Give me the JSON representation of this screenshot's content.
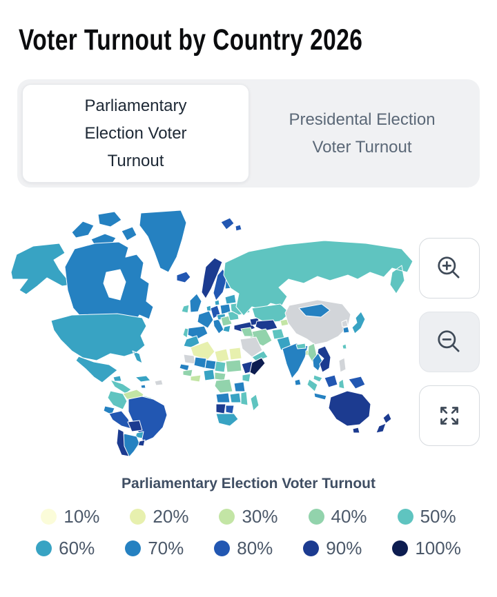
{
  "title": "Voter Turnout by Country 2026",
  "tabs": [
    {
      "label": "Parliamentary Election Voter Turnout",
      "active": true
    },
    {
      "label": "Presidental Election Voter Turnout",
      "active": false
    }
  ],
  "controls": [
    {
      "icon": "zoom-in-icon"
    },
    {
      "icon": "zoom-out-icon"
    },
    {
      "icon": "fullscreen-icon"
    }
  ],
  "legend": {
    "title": "Parliamentary Election Voter Turnout",
    "items": [
      {
        "label": "10%",
        "color": "#fbfcd9"
      },
      {
        "label": "20%",
        "color": "#e7f0ae"
      },
      {
        "label": "30%",
        "color": "#c3e5a5"
      },
      {
        "label": "40%",
        "color": "#92d3ac"
      },
      {
        "label": "50%",
        "color": "#5fc4c0"
      },
      {
        "label": "60%",
        "color": "#38a3c3"
      },
      {
        "label": "70%",
        "color": "#2581c1"
      },
      {
        "label": "80%",
        "color": "#2257b2"
      },
      {
        "label": "90%",
        "color": "#1c3b90"
      },
      {
        "label": "100%",
        "color": "#0d1d50"
      }
    ]
  },
  "map": {
    "palette": {
      "10": "#fbfcd9",
      "20": "#e7f0ae",
      "30": "#c3e5a5",
      "40": "#92d3ac",
      "50": "#5fc4c0",
      "60": "#38a3c3",
      "70": "#2581c1",
      "80": "#2257b2",
      "90": "#1c3b90",
      "100": "#0d1d50",
      "no-data": "#d2d5d9",
      "ocean": "#ffffff"
    },
    "regions": {
      "alaska": "60",
      "canada": "70",
      "arctic-islands": "70",
      "hudson-bay": "ocean",
      "greenland": "70",
      "iceland": "80",
      "usa": "60",
      "mexico": "60",
      "central-america": "50",
      "cuba": "60",
      "hispaniola": "no-data",
      "jamaica": "70",
      "venezuela": "30",
      "colombia": "50",
      "guyanas": "50",
      "ecuador": "70",
      "peru": "80",
      "brazil": "80",
      "bolivia": "90",
      "paraguay": "60",
      "chile": "90",
      "argentina": "70",
      "uruguay": "90",
      "norway": "90",
      "sweden": "80",
      "finland": "70",
      "uk": "70",
      "ireland": "50",
      "portugal": "50",
      "spain": "70",
      "france": "70",
      "germany": "80",
      "benelux": "60",
      "denmark": "60",
      "poland": "70",
      "czechia-region": "60",
      "italy": "70",
      "balkans": "40",
      "greece": "60",
      "romania-bulgaria": "50",
      "ukraine": "50",
      "belarus-baltics": "60",
      "turkey": "90",
      "caucasus": "90",
      "russia": "50",
      "svalbard": "80",
      "kazakhstan": "50",
      "central-asia": "90",
      "kyrgyzstan": "30",
      "iran": "40",
      "iraq-syria": "40",
      "saudi-arabia": "no-data",
      "yemen-oman": "50",
      "afghanistan": "50",
      "pakistan": "60",
      "india": "70",
      "sri-lanka": "70",
      "nepal": "50",
      "bangladesh": "30",
      "china": "no-data",
      "mongolia": "70",
      "north-korea": "no-data",
      "south-korea": "70",
      "japan": "60",
      "taiwan": "50",
      "myanmar": "40",
      "thailand": "70",
      "indochina": "90",
      "malaysia": "50",
      "sumatra": "50",
      "java": "70",
      "borneo": "80",
      "sulawesi": "50",
      "philippines": "no-data",
      "new-guinea": "80",
      "australia": "90",
      "tasmania": "90",
      "new-zealand": "90",
      "morocco": "60",
      "algeria": "20",
      "libya": "20",
      "egypt": "20",
      "mauritania": "no-data",
      "mali": "70",
      "niger": "70",
      "chad": "50",
      "sudan": "40",
      "senegal": "70",
      "guinea-region": "40",
      "ivory-ghana": "30",
      "nigeria": "60",
      "cameroon-car": "40",
      "ethiopia": "90",
      "somalia": "100",
      "kenya": "50",
      "drc": "40",
      "tanzania": "70",
      "angola": "70",
      "zambia": "60",
      "mozambique": "50",
      "namibia": "90",
      "botswana": "80",
      "south-africa": "60",
      "madagascar": "50"
    }
  }
}
